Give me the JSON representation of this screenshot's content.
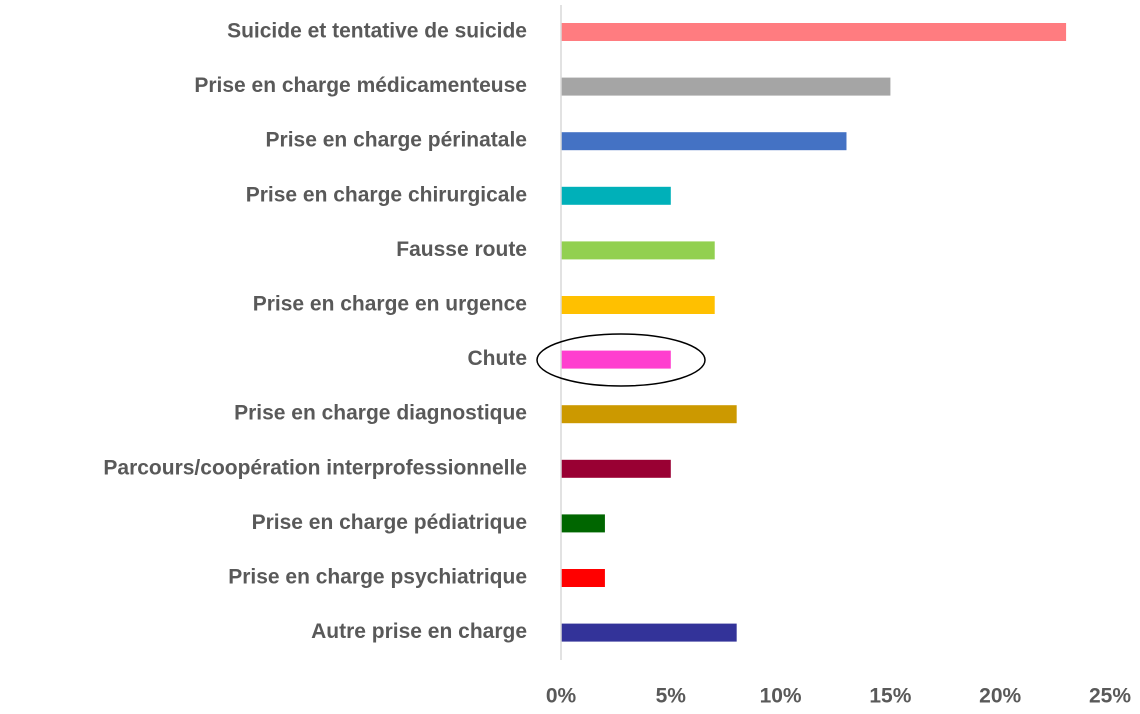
{
  "chart_data": {
    "type": "barh",
    "categories": [
      "Suicide et tentative de suicide",
      "Prise en charge médicamenteuse",
      "Prise en charge périnatale",
      "Prise en charge chirurgicale",
      "Fausse route",
      "Prise en charge en urgence",
      "Chute",
      "Prise en charge diagnostique",
      "Parcours/coopération interprofessionnelle",
      "Prise en charge pédiatrique",
      "Prise en charge psychiatrique",
      "Autre prise en charge"
    ],
    "values": [
      23,
      15,
      13,
      5,
      7,
      7,
      5,
      8,
      5,
      2,
      2,
      8
    ],
    "colors": [
      "#ff7c80",
      "#a5a5a5",
      "#4472c4",
      "#00b0b9",
      "#92d050",
      "#ffc000",
      "#ff3fcf",
      "#cc9900",
      "#990033",
      "#006600",
      "#ff0000",
      "#333399"
    ],
    "xlim": [
      0,
      25
    ],
    "xticks": [
      {
        "value": 0,
        "label": "0%"
      },
      {
        "value": 5,
        "label": "5%"
      },
      {
        "value": 10,
        "label": "10%"
      },
      {
        "value": 15,
        "label": "15%"
      },
      {
        "value": 20,
        "label": "20%"
      },
      {
        "value": 25,
        "label": "25%"
      }
    ],
    "grid": false
  }
}
